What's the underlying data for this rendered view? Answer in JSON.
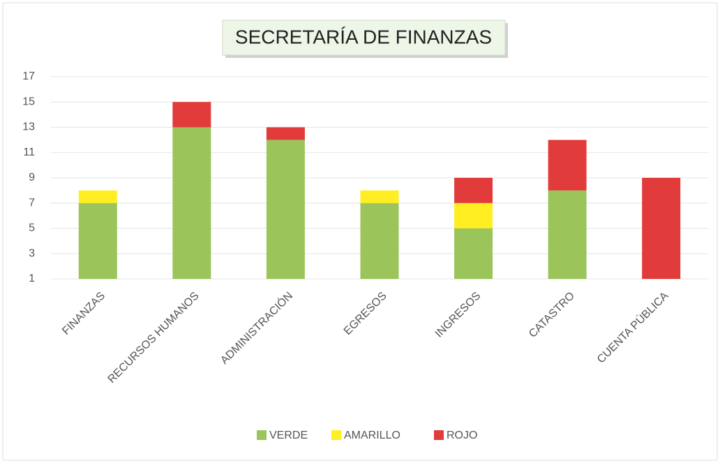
{
  "chart_data": {
    "type": "stacked_bar",
    "title": "SECRETARÍA DE FINANZAS",
    "categories": [
      "FINANZAS",
      "RECURSOS HUMANOS",
      "ADMINISTRACIÓN",
      "EGRESOS",
      "INGRESOS",
      "CATASTRO",
      "CUENTA PÚBLICA"
    ],
    "series": [
      {
        "name": "VERDE",
        "color": "#9bc45a",
        "values": [
          7,
          13,
          12,
          7,
          5,
          8,
          0
        ]
      },
      {
        "name": "AMARILLO",
        "color": "#ffee22",
        "values": [
          1,
          0,
          0,
          1,
          2,
          0,
          0
        ]
      },
      {
        "name": "ROJO",
        "color": "#e23b3b",
        "values": [
          0,
          2,
          1,
          0,
          2,
          4,
          9
        ]
      }
    ],
    "ylim": [
      1,
      17
    ],
    "yticks": [
      1,
      3,
      5,
      7,
      9,
      11,
      13,
      15,
      17
    ],
    "grid": true,
    "legend": "bottom"
  }
}
